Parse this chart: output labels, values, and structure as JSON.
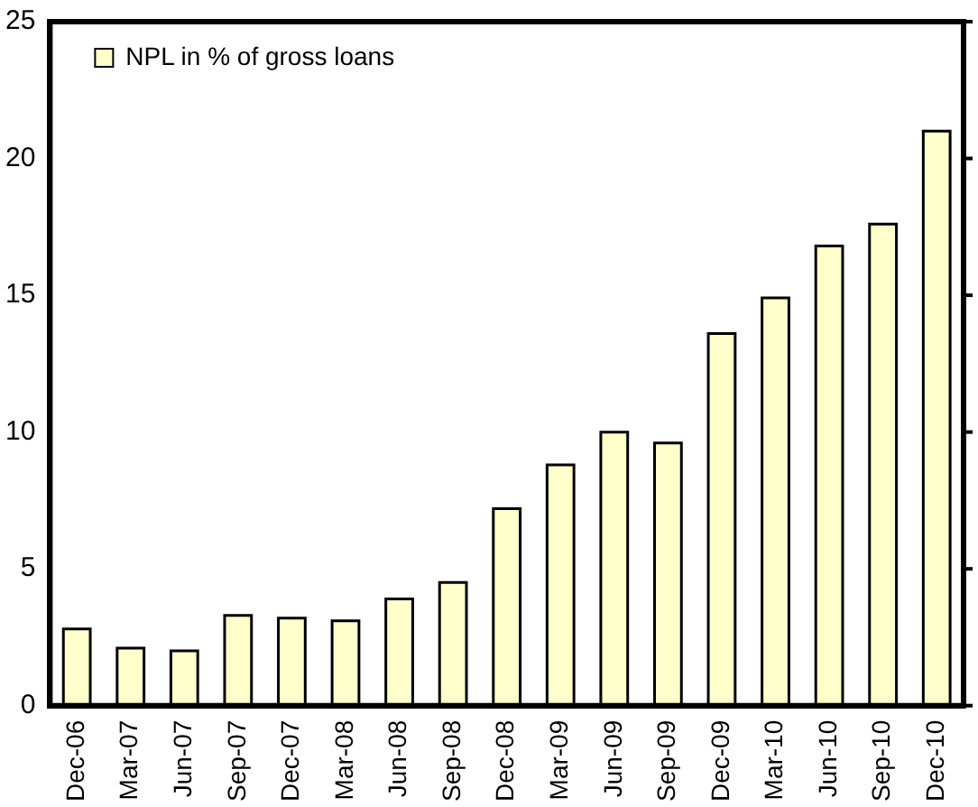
{
  "chart_data": {
    "type": "bar",
    "categories": [
      "Dec-06",
      "Mar-07",
      "Jun-07",
      "Sep-07",
      "Dec-07",
      "Mar-08",
      "Jun-08",
      "Sep-08",
      "Dec-08",
      "Mar-09",
      "Jun-09",
      "Sep-09",
      "Dec-09",
      "Mar-10",
      "Jun-10",
      "Sep-10",
      "Dec-10"
    ],
    "series": [
      {
        "name": "NPL in % of gross loans",
        "color": "#ffffcc",
        "values": [
          2.8,
          2.1,
          2.0,
          3.3,
          3.2,
          3.1,
          3.9,
          4.5,
          7.2,
          8.8,
          10.0,
          9.6,
          13.6,
          14.9,
          16.8,
          17.6,
          21.0
        ]
      }
    ],
    "ylim": [
      0,
      25
    ],
    "yticks": [
      0,
      5,
      10,
      15,
      20,
      25
    ],
    "grid": false,
    "legend": "top left"
  }
}
